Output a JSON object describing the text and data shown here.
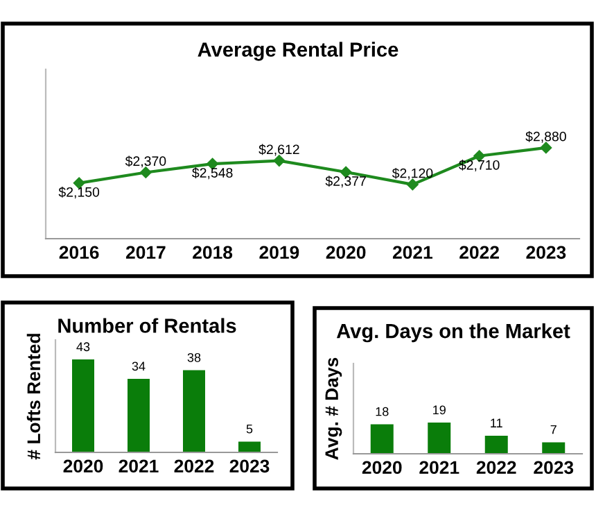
{
  "chart_data": [
    {
      "type": "line",
      "title": "Average Rental Price",
      "categories": [
        "2016",
        "2017",
        "2018",
        "2019",
        "2020",
        "2021",
        "2022",
        "2023"
      ],
      "series": [
        {
          "color": "#1e8a1e",
          "values": [
            2150,
            2370,
            2548,
            2612,
            2377,
            2120,
            2710,
            2880
          ],
          "value_labels": [
            "$2,150",
            "$2,370",
            "$2,548",
            "$2,612",
            "$2,377",
            "$2,120",
            "$2,710",
            "$2,880"
          ]
        }
      ],
      "ylim": [
        1000,
        4500
      ],
      "tick_labels": "x",
      "marker": "diamond",
      "grid": false,
      "legend": false
    },
    {
      "type": "bar",
      "title": "Number of Rentals",
      "ylabel": "# Lofts Rented",
      "categories": [
        "2020",
        "2021",
        "2022",
        "2023"
      ],
      "series": [
        {
          "color": "#0a7d0a",
          "values": [
            43,
            34,
            38,
            5
          ]
        }
      ],
      "ylim": [
        0,
        52
      ],
      "tick_labels": "x",
      "data_labels": true,
      "grid": false,
      "legend": false
    },
    {
      "type": "bar",
      "title": "Avg. Days on the Market",
      "ylabel": "Avg. # Days",
      "categories": [
        "2020",
        "2021",
        "2022",
        "2023"
      ],
      "series": [
        {
          "color": "#0a7d0a",
          "values": [
            18,
            19,
            11,
            7
          ]
        }
      ],
      "ylim": [
        0,
        55
      ],
      "tick_labels": "x",
      "data_labels": true,
      "grid": false,
      "legend": false
    }
  ]
}
